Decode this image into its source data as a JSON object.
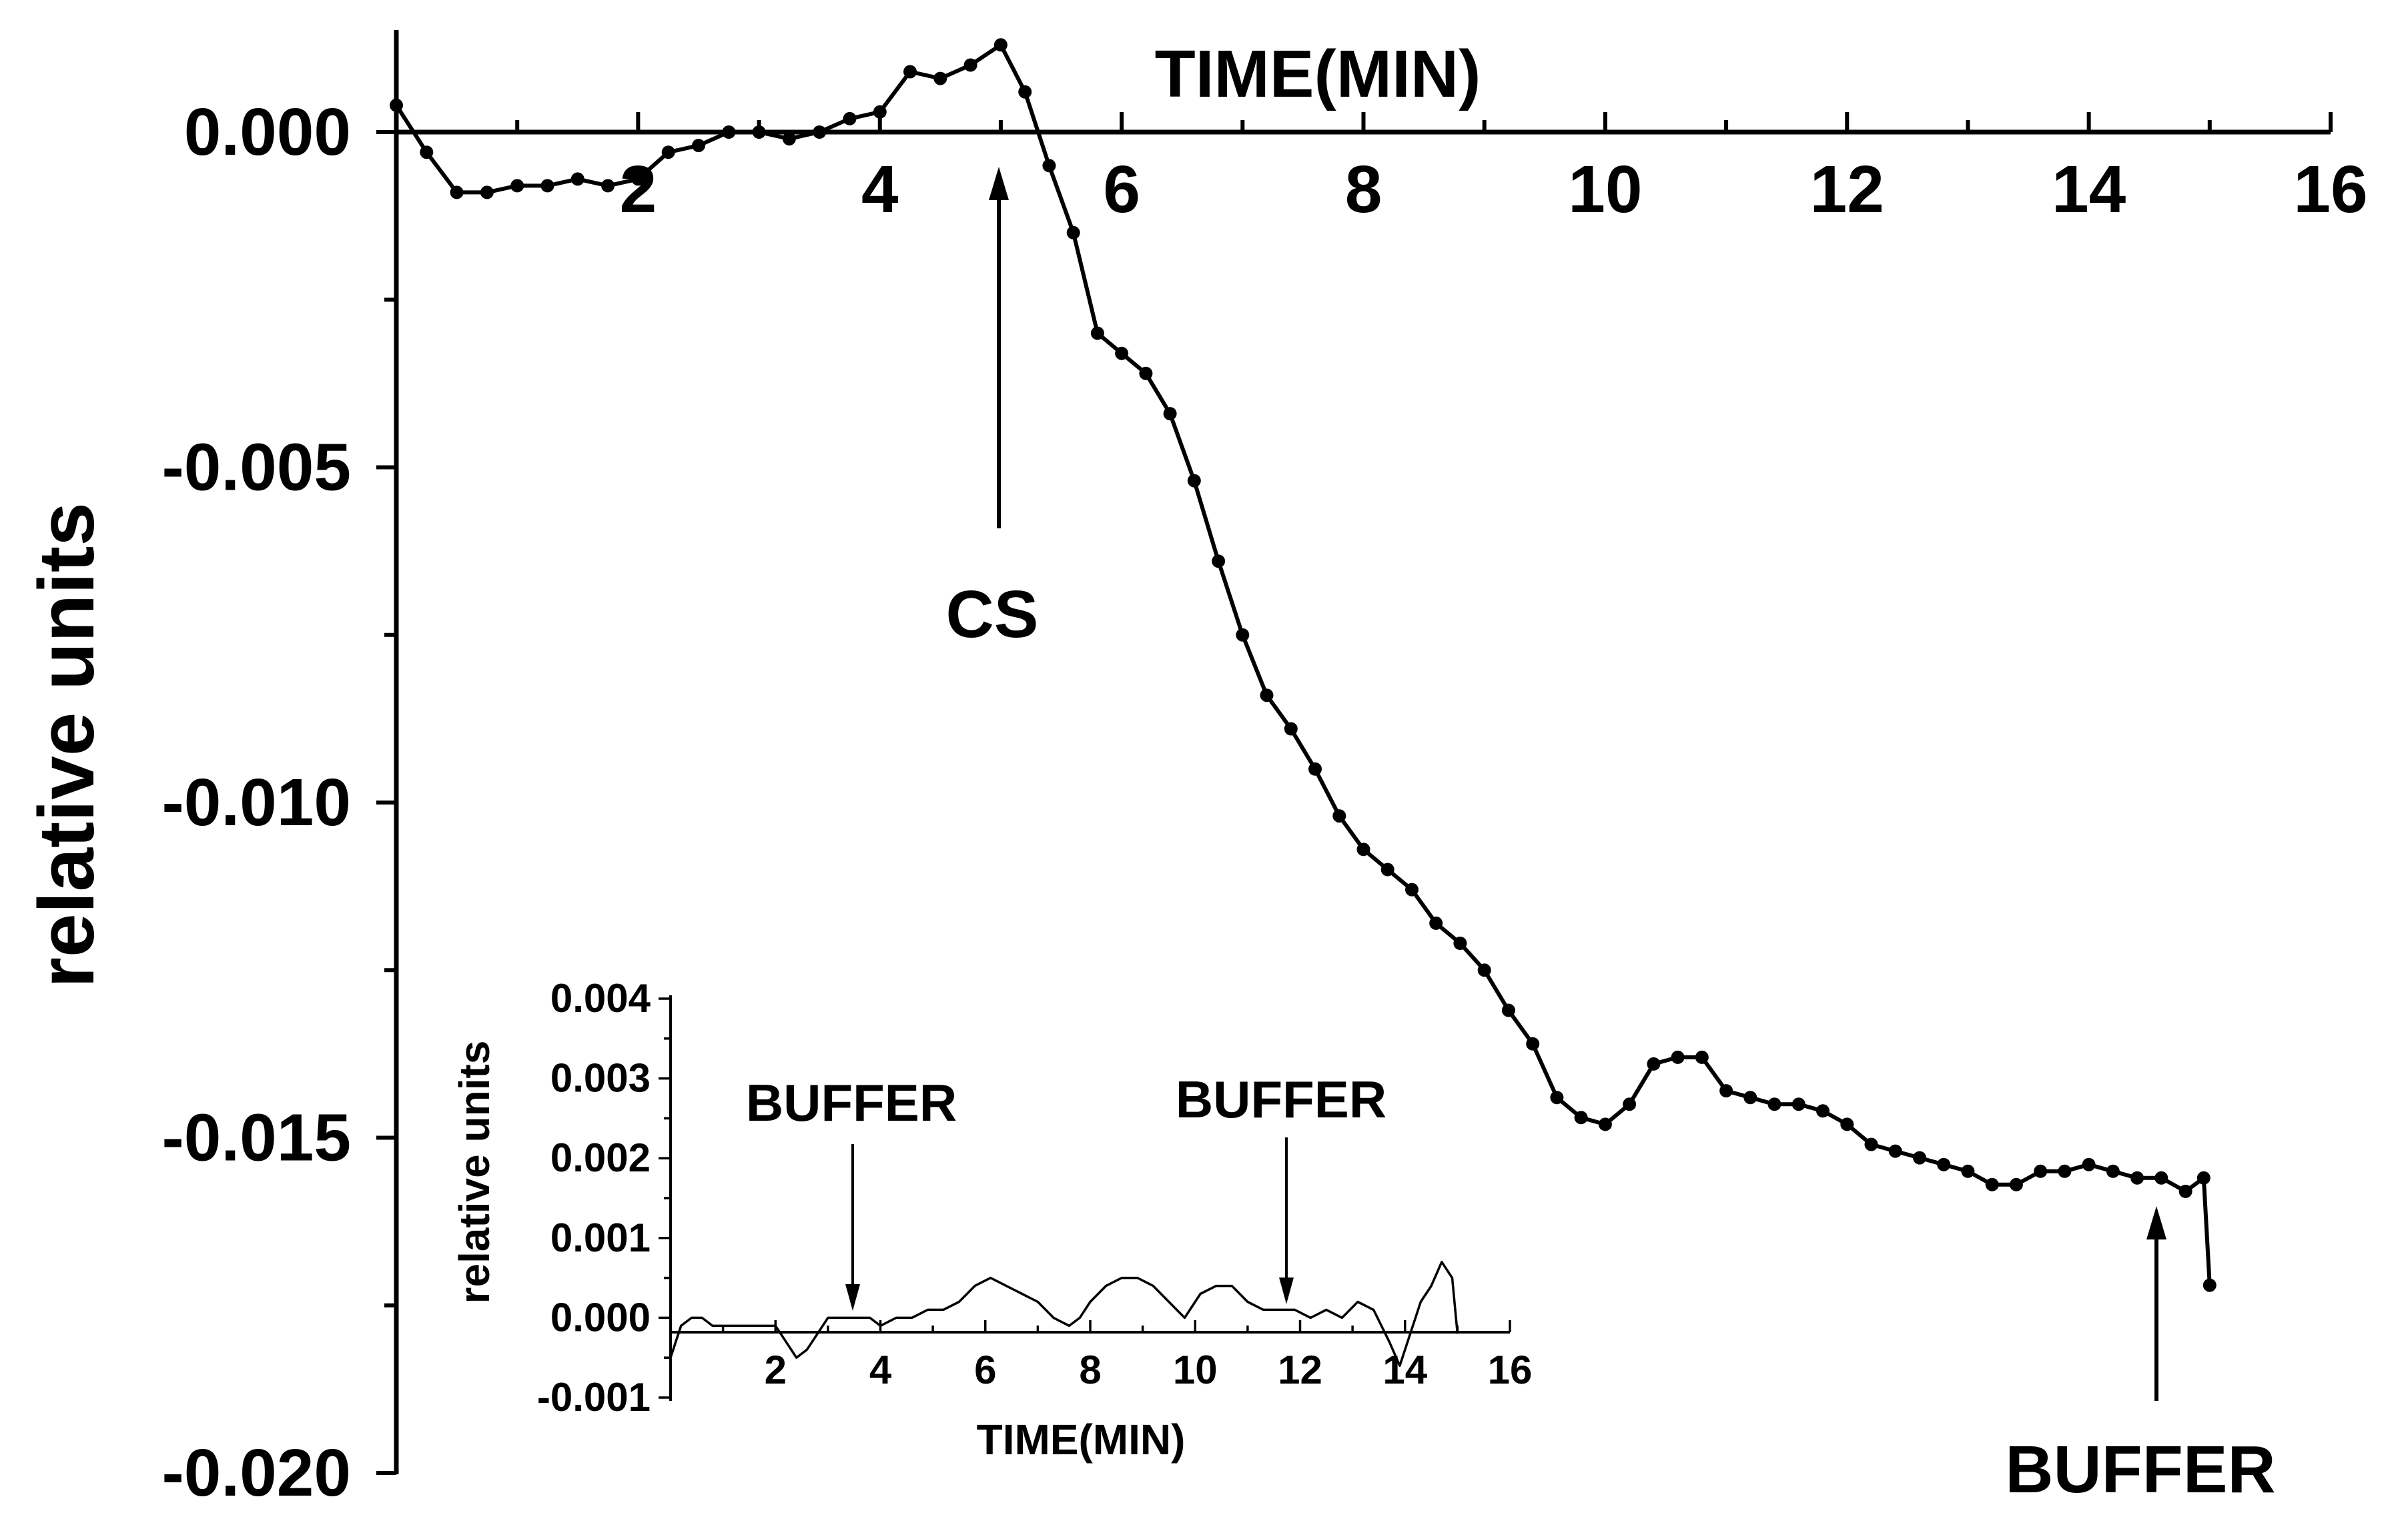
{
  "chart_data": [
    {
      "type": "line",
      "title": "",
      "xlabel": "TIME(MIN)",
      "ylabel": "relative units",
      "xlim": [
        0,
        16
      ],
      "ylim": [
        -0.02,
        0.0015
      ],
      "xticks": [
        2,
        4,
        6,
        8,
        10,
        12,
        14,
        16
      ],
      "yticks": [
        0.0,
        -0.005,
        -0.01,
        -0.015,
        -0.02
      ],
      "ytick_labels": [
        "0.000",
        "-0.005",
        "-0.010",
        "-0.015",
        "-0.020"
      ],
      "markers": true,
      "series": [
        {
          "x": [
            0.0,
            0.25,
            0.5,
            0.75,
            1.0,
            1.25,
            1.5,
            1.75,
            2.0,
            2.25,
            2.5,
            2.75,
            3.0,
            3.25,
            3.5,
            3.75,
            4.0,
            4.25,
            4.5,
            4.75,
            5.0,
            5.2,
            5.4,
            5.6,
            5.8,
            6.0,
            6.2,
            6.4,
            6.6,
            6.8,
            7.0,
            7.2,
            7.4,
            7.6,
            7.8,
            8.0,
            8.2,
            8.4,
            8.6,
            8.8,
            9.0,
            9.2,
            9.4,
            9.6,
            9.8,
            10.0,
            10.2,
            10.4,
            10.6,
            10.8,
            11.0,
            11.2,
            11.4,
            11.6,
            11.8,
            12.0,
            12.2,
            12.4,
            12.6,
            12.8,
            13.0,
            13.2,
            13.4,
            13.6,
            13.8,
            14.0,
            14.2,
            14.4,
            14.6,
            14.8,
            14.95,
            15.0
          ],
          "y": [
            0.0004,
            -0.0003,
            -0.0009,
            -0.0009,
            -0.0008,
            -0.0008,
            -0.0007,
            -0.0008,
            -0.0007,
            -0.0003,
            -0.0002,
            0.0,
            0.0,
            -0.0001,
            0.0,
            0.0002,
            0.0003,
            0.0009,
            0.0008,
            0.001,
            0.0013,
            0.0006,
            -0.0005,
            -0.0015,
            -0.003,
            -0.0033,
            -0.0036,
            -0.0042,
            -0.0052,
            -0.0064,
            -0.0075,
            -0.0084,
            -0.0089,
            -0.0095,
            -0.0102,
            -0.0107,
            -0.011,
            -0.0113,
            -0.0118,
            -0.0121,
            -0.0125,
            -0.0131,
            -0.0136,
            -0.0144,
            -0.0147,
            -0.0148,
            -0.0145,
            -0.0139,
            -0.0138,
            -0.0138,
            -0.0143,
            -0.0144,
            -0.0145,
            -0.0145,
            -0.0146,
            -0.0148,
            -0.0151,
            -0.0152,
            -0.0153,
            -0.0154,
            -0.0155,
            -0.0157,
            -0.0157,
            -0.0155,
            -0.0155,
            -0.0154,
            -0.0155,
            -0.0156,
            -0.0156,
            -0.0158,
            -0.0156,
            -0.0172
          ]
        }
      ],
      "annotations": [
        {
          "text": "TIME(MIN)",
          "x": 8.0
        },
        {
          "text": "CS",
          "x": 5.0
        },
        {
          "text": "BUFFER",
          "x": 14.5
        }
      ]
    },
    {
      "type": "line",
      "title": "",
      "xlabel": "TIME(MIN)",
      "ylabel": "relative units",
      "xlim": [
        0,
        16
      ],
      "ylim": [
        -0.001,
        0.004
      ],
      "xticks": [
        2,
        4,
        6,
        8,
        10,
        12,
        14,
        16
      ],
      "yticks": [
        0.004,
        0.003,
        0.002,
        0.001,
        0.0,
        -0.001
      ],
      "ytick_labels": [
        "0.004",
        "0.003",
        "0.002",
        "0.001",
        "0.000",
        "-0.001"
      ],
      "markers": false,
      "series": [
        {
          "x": [
            0.0,
            0.2,
            0.4,
            0.6,
            0.8,
            1.0,
            1.2,
            1.4,
            1.6,
            1.8,
            2.0,
            2.2,
            2.4,
            2.6,
            2.8,
            3.0,
            3.2,
            3.4,
            3.6,
            3.8,
            4.0,
            4.3,
            4.6,
            4.9,
            5.2,
            5.5,
            5.8,
            6.1,
            6.4,
            6.7,
            7.0,
            7.3,
            7.6,
            7.8,
            8.0,
            8.3,
            8.6,
            8.9,
            9.2,
            9.5,
            9.8,
            10.1,
            10.4,
            10.7,
            11.0,
            11.3,
            11.6,
            11.9,
            12.2,
            12.5,
            12.8,
            13.1,
            13.4,
            13.7,
            13.9,
            14.1,
            14.3,
            14.5,
            14.7,
            14.9,
            15.0
          ],
          "y": [
            -0.0005,
            -0.0001,
            0.0,
            0.0,
            -0.0001,
            -0.0001,
            -0.0001,
            -0.0001,
            -0.0001,
            -0.0001,
            -0.0001,
            -0.0003,
            -0.0005,
            -0.0004,
            -0.0002,
            0.0,
            0.0,
            0.0,
            0.0,
            0.0,
            -0.0001,
            0.0,
            0.0,
            0.0001,
            0.0001,
            0.0002,
            0.0004,
            0.0005,
            0.0004,
            0.0003,
            0.0002,
            0.0,
            -0.0001,
            0.0,
            0.0002,
            0.0004,
            0.0005,
            0.0005,
            0.0004,
            0.0002,
            0.0,
            0.0003,
            0.0004,
            0.0004,
            0.0002,
            0.0001,
            0.0001,
            0.0001,
            0.0,
            0.0001,
            0.0,
            0.0002,
            0.0001,
            -0.0003,
            -0.0006,
            -0.0002,
            0.0002,
            0.0004,
            0.0007,
            0.0005,
            -0.0002
          ]
        }
      ],
      "annotations": [
        {
          "text": "BUFFER",
          "x": 3.5
        },
        {
          "text": "BUFFER",
          "x": 11.8
        }
      ]
    }
  ]
}
